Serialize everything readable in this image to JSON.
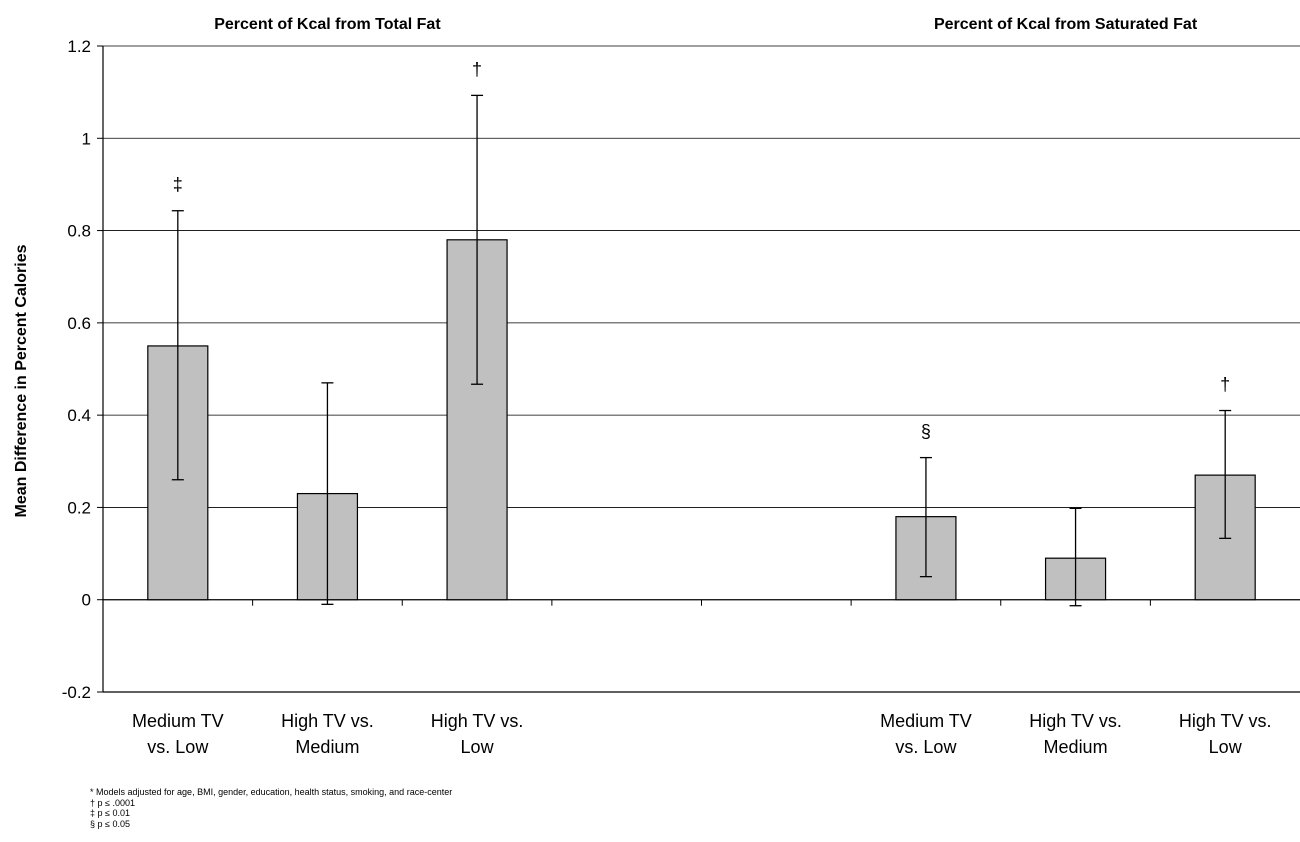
{
  "chart_data": {
    "type": "bar",
    "ylabel": "Mean Difference in Percent Calories",
    "ylim": [
      -0.2,
      1.2
    ],
    "yticks": [
      -0.2,
      0,
      0.2,
      0.4,
      0.6,
      0.8,
      1,
      1.2
    ],
    "ytick_labels": [
      "-0.2",
      "0",
      "0.2",
      "0.4",
      "0.6",
      "0.8",
      "1",
      "1.2"
    ],
    "grid": true,
    "panel_titles": [
      "Percent of Kcal from Total Fat",
      "Percent of Kcal from Saturated Fat"
    ],
    "categories": [
      [
        "Medium TV",
        "vs. Low"
      ],
      [
        "High TV vs.",
        "Medium"
      ],
      [
        "High TV vs.",
        "Low"
      ],
      [
        "",
        ""
      ],
      [
        "",
        ""
      ],
      [
        "Medium TV",
        "vs. Low"
      ],
      [
        "High TV vs.",
        "Medium"
      ],
      [
        "High TV vs.",
        "Low"
      ]
    ],
    "bar_color": "#c0c0c0",
    "series": [
      {
        "values": [
          0.55,
          0.23,
          0.78,
          null,
          null,
          0.18,
          0.09,
          0.27
        ],
        "error_low": [
          0.26,
          -0.01,
          0.467,
          null,
          null,
          0.05,
          -0.013,
          0.133
        ],
        "error_high": [
          0.843,
          0.47,
          1.093,
          null,
          null,
          0.308,
          0.198,
          0.41
        ],
        "significance_marks": [
          "‡",
          "",
          "†",
          "",
          "",
          "§",
          "",
          "†"
        ]
      }
    ]
  },
  "footnotes": [
    "* Models adjusted for age, BMI, gender, education, health status, smoking, and race-center",
    "† p ≤ .0001",
    "‡ p ≤ 0.01",
    "§ p ≤ 0.05"
  ]
}
